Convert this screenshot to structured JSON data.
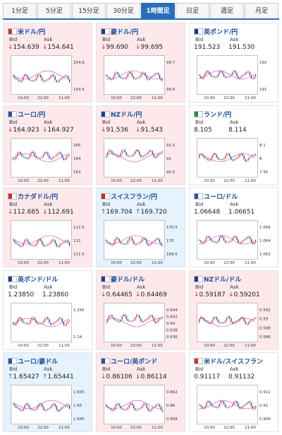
{
  "tabs": [
    "1分足",
    "5分足",
    "15分足",
    "30分足",
    "1時間足",
    "日足",
    "週足",
    "月足"
  ],
  "active_tab": 4,
  "labels": {
    "bid": "Bid",
    "ask": "Ask"
  },
  "cards": [
    {
      "name": "米ドル/円",
      "arrow": "↓",
      "bid": "154.639",
      "ask": "154.641",
      "trend": "down",
      "yticks": [
        "154.6",
        "154.5"
      ],
      "xticks": [
        "10:00",
        "22:00",
        "11:00"
      ]
    },
    {
      "name": "豪ドル/円",
      "arrow": "↓",
      "bid": "99.690",
      "ask": "99.695",
      "trend": "down",
      "yticks": [
        "99.7",
        "99.6"
      ],
      "xticks": [
        "10:00",
        "22:00",
        "11:00"
      ]
    },
    {
      "name": "英ポンド/円",
      "bid": "191.523",
      "ask": "191.530",
      "trend": "flat",
      "yticks": [
        "192",
        "191"
      ],
      "xticks": [
        "10:00",
        "22:00",
        "11:00"
      ]
    },
    {
      "name": "ユーロ/円",
      "arrow": "↓",
      "bid": "164.923",
      "ask": "164.927",
      "trend": "down",
      "yticks": [
        "165",
        "164",
        "163"
      ],
      "xticks": [
        "10:00",
        "22:00",
        "11:00"
      ]
    },
    {
      "name": "NZドル/円",
      "arrow": "↓",
      "bid": "91.536",
      "ask": "91.543",
      "trend": "down",
      "yticks": [
        "91.5",
        "91",
        "90.5"
      ],
      "xticks": [
        "10:00",
        "22:00",
        "11:00"
      ]
    },
    {
      "name": "ランド/円",
      "bid": "8.105",
      "ask": "8.114",
      "trend": "flat",
      "yticks": [
        "8.1",
        "8",
        "7.95"
      ],
      "xticks": [
        "10:00",
        "22:00",
        "11:00"
      ]
    },
    {
      "name": "カナダドル/円",
      "arrow": "↓",
      "bid": "112.685",
      "ask": "112.691",
      "trend": "down",
      "yticks": [
        "112.5",
        "112",
        "111.5"
      ],
      "xticks": [
        "10:00",
        "22:00",
        "11:00"
      ]
    },
    {
      "name": "スイスフラン/円",
      "arrow": "↑",
      "bid": "169.704",
      "ask": "169.720",
      "trend": "up",
      "yticks": [
        "170.5",
        "170",
        "169.5"
      ],
      "xticks": [
        "10:00",
        "22:00",
        "11:00"
      ]
    },
    {
      "name": "ユーロ/ドル",
      "bid": "1.06648",
      "ask": "1.06651",
      "trend": "flat",
      "yticks": [
        "1.066",
        "1.064",
        "1.062"
      ],
      "xticks": [
        "10:00",
        "22:00",
        "11:00"
      ]
    },
    {
      "name": "英ポンド/ドル",
      "bid": "1.23850",
      "ask": "1.23860",
      "trend": "flat",
      "yticks": [
        "1.245",
        "1.24"
      ],
      "xticks": [
        "10:00",
        "22:00",
        "11:00"
      ]
    },
    {
      "name": "豪ドル/ドル",
      "arrow": "↓",
      "bid": "0.64465",
      "ask": "0.64469",
      "trend": "down",
      "yticks": [
        "0.644",
        "0.642",
        "0.64",
        "0.638",
        "0.636"
      ],
      "xticks": [
        "10:00",
        "22:00",
        "11:00"
      ]
    },
    {
      "name": "NZドル/ドル",
      "arrow": "↓",
      "bid": "0.59187",
      "ask": "0.59201",
      "trend": "down",
      "yticks": [
        "0.592",
        "0.59",
        "0.588",
        "0.586"
      ],
      "xticks": [
        "10:00",
        "22:00",
        "11:00"
      ]
    },
    {
      "name": "ユーロ/豪ドル",
      "arrow": "↑",
      "bid": "1.65427",
      "ask": "1.65441",
      "trend": "up",
      "yticks": [
        "1.655",
        "1.65",
        "1.645"
      ],
      "xticks": [
        "10:00",
        "22:00",
        "11:00"
      ]
    },
    {
      "name": "ユーロ/英ポンド",
      "arrow": "↓",
      "bid": "0.86106",
      "ask": "0.86114",
      "trend": "down",
      "yticks": [
        "0.862",
        "0.86",
        "0.858"
      ],
      "xticks": [
        "10:00",
        "22:00",
        "11:00"
      ]
    },
    {
      "name": "米ドル/スイスフラン",
      "bid": "0.91117",
      "ask": "0.91132",
      "trend": "flat",
      "yticks": [
        "0.911",
        "0.91",
        "0.909"
      ],
      "xticks": [
        "10:00",
        "22:00",
        "11:00"
      ]
    }
  ]
}
